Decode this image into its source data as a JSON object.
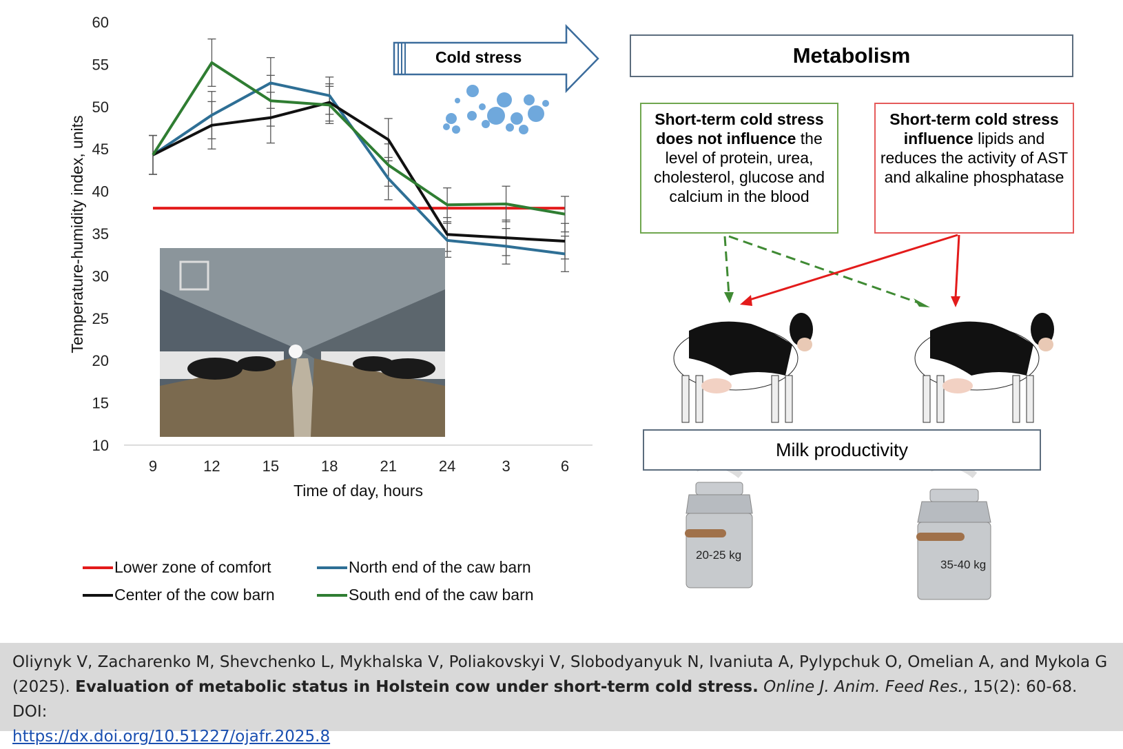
{
  "chart_data": {
    "type": "line",
    "categories": [
      "9",
      "12",
      "15",
      "18",
      "21",
      "24",
      "3",
      "6"
    ],
    "xlabel": "Time of day, hours",
    "ylabel": "Temperature-humidity  index, units",
    "ylim": [
      10,
      60
    ],
    "yticks": [
      "10",
      "15",
      "20",
      "25",
      "30",
      "35",
      "40",
      "45",
      "50",
      "55",
      "60"
    ],
    "grid": false,
    "legend_position": "bottom",
    "series": [
      {
        "name": "Lower zone of comfort",
        "color": "#e31b1b",
        "values": [
          38,
          38,
          38,
          38,
          38,
          38,
          38,
          38
        ]
      },
      {
        "name": "North end of the caw barn",
        "color": "#2e6f95",
        "values": [
          44.3,
          49,
          52.8,
          51.3,
          41.5,
          34.2,
          33.5,
          32.6
        ]
      },
      {
        "name": "Center of the cow barn",
        "color": "#111111",
        "values": [
          44.3,
          47.8,
          48.7,
          50.5,
          46.1,
          34.9,
          34.5,
          34.1
        ]
      },
      {
        "name": "South end of the caw barn",
        "color": "#2f7d32",
        "values": [
          44.3,
          55.2,
          50.7,
          50.2,
          43.1,
          38.4,
          38.5,
          37.3
        ]
      }
    ],
    "error_bars": {
      "values": [
        2.3,
        2.8,
        3.0,
        2.2,
        2.5,
        2.0,
        2.1,
        2.1
      ]
    }
  },
  "diagram": {
    "cold_stress": "Cold stress",
    "metabolism": "Metabolism",
    "green_box": {
      "bold1": "Short-term cold stress",
      "bold2": "does not influence",
      "text": " the level of protein, urea, cholesterol, glucose and calcium in the blood"
    },
    "red_box": {
      "bold1": "Short-term cold stress",
      "bold2": "influence",
      "text": " lipids and reduces the activity of AST and alkaline phosphatase"
    },
    "milk_productivity": "Milk productivity",
    "can_left": "20-25 kg",
    "can_right": "35-40 kg"
  },
  "citation": {
    "authors": "Oliynyk V, Zacharenko M, Shevchenko L, Mykhalska V, Poliakovskyi V, Slobodyanyuk N, Ivaniuta A, Pylypchuk O, Omelian A, and Mykola G (2025). ",
    "title": "Evaluation of metabolic status in Holstein cow under short-term cold stress.",
    "journal": "Online J. Anim. Feed Res.",
    "details": ", 15(2): 60-68. DOI: ",
    "doi": "https://dx.doi.org/10.51227/ojafr.2025.8"
  }
}
